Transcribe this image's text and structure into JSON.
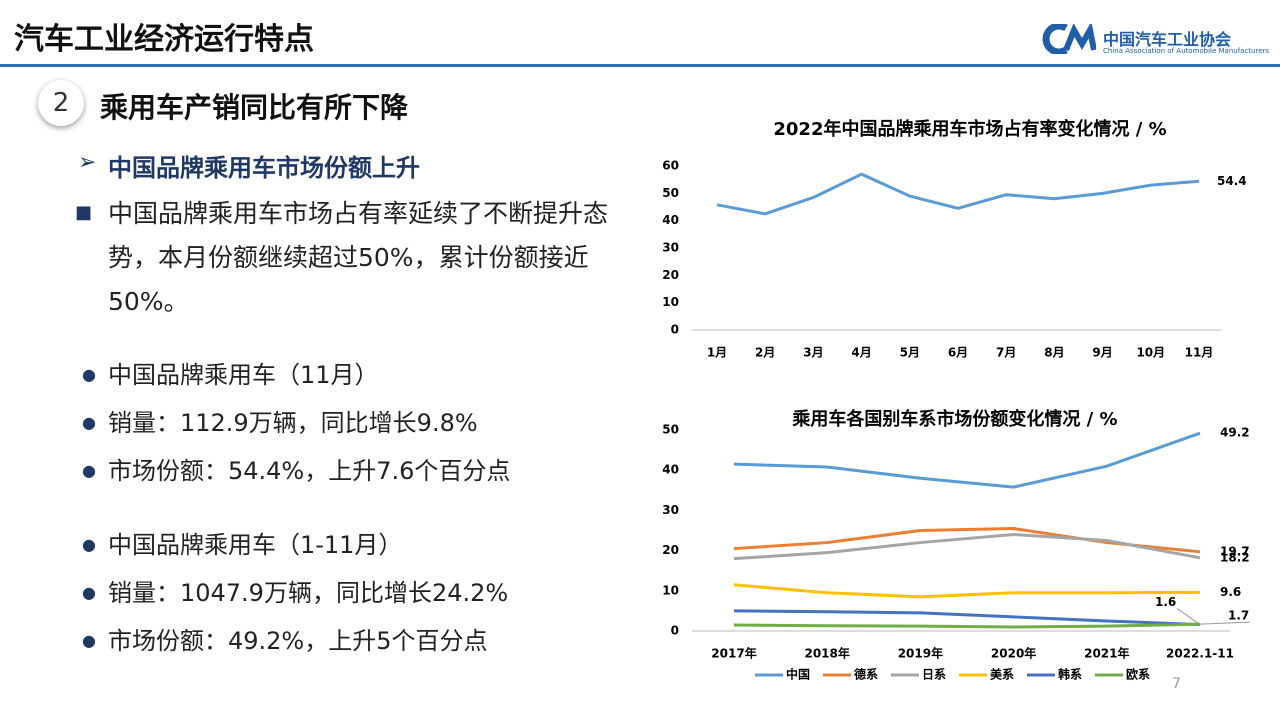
{
  "header": {
    "title": "汽车工业经济运行特点",
    "logo_cn": "中国汽车工业协会",
    "logo_en": "China Association of Automobile Manufacturers"
  },
  "section": {
    "number": "2",
    "title": "乘用车产销同比有所下降"
  },
  "subheading": "中国品牌乘用车市场份额上升",
  "paragraph": "中国品牌乘用车市场占有率延续了不断提升态势，本月份额继续超过50%，累计份额接近50%。",
  "bullets": [
    [
      "中国品牌乘用车（11月）",
      "销量：112.9万辆，同比增长9.8%",
      "市场份额：54.4%，上升7.6个百分点"
    ],
    [
      "中国品牌乘用车（1-11月）",
      "销量：1047.9万辆，同比增长24.2%",
      "市场份额：49.2%，上升5个百分点"
    ]
  ],
  "page_number": "7",
  "chart_data": [
    {
      "type": "line",
      "title": "2022年中国品牌乘用车市场占有率变化情况 / %",
      "categories": [
        "1月",
        "2月",
        "3月",
        "4月",
        "5月",
        "6月",
        "7月",
        "8月",
        "9月",
        "10月",
        "11月"
      ],
      "values": [
        45.8,
        42.5,
        48.5,
        57,
        49,
        44.5,
        49.5,
        48,
        50,
        53,
        54.4
      ],
      "color": "#5b9bd5",
      "ylim": [
        0,
        60
      ],
      "yticks": [
        0,
        10,
        20,
        30,
        40,
        50,
        60
      ]
    },
    {
      "type": "line",
      "title": "乘用车各国别车系市场份额变化情况 / %",
      "categories": [
        "2017年",
        "2018年",
        "2019年",
        "2020年",
        "2021年",
        "2022.1-11"
      ],
      "series": [
        {
          "name": "中国",
          "color": "#5b9bd5",
          "values": [
            41.5,
            40.8,
            38,
            35.8,
            41,
            49.2
          ]
        },
        {
          "name": "德系",
          "color": "#ed7d31",
          "values": [
            20.5,
            22,
            25,
            25.5,
            22,
            19.7
          ]
        },
        {
          "name": "日系",
          "color": "#a5a5a5",
          "values": [
            18,
            19.5,
            22,
            24,
            22.5,
            18.2
          ]
        },
        {
          "name": "美系",
          "color": "#ffc000",
          "values": [
            11.5,
            9.5,
            8.5,
            9.5,
            9.5,
            9.6
          ]
        },
        {
          "name": "韩系",
          "color": "#4472c4",
          "values": [
            5,
            4.8,
            4.5,
            3.5,
            2.5,
            1.6
          ]
        },
        {
          "name": "欧系",
          "color": "#70ad47",
          "values": [
            1.5,
            1.3,
            1.2,
            1,
            1.2,
            1.7
          ]
        }
      ],
      "ylim": [
        0,
        50
      ],
      "yticks": [
        0,
        10,
        20,
        30,
        40,
        50
      ],
      "legend": "bottom"
    }
  ]
}
